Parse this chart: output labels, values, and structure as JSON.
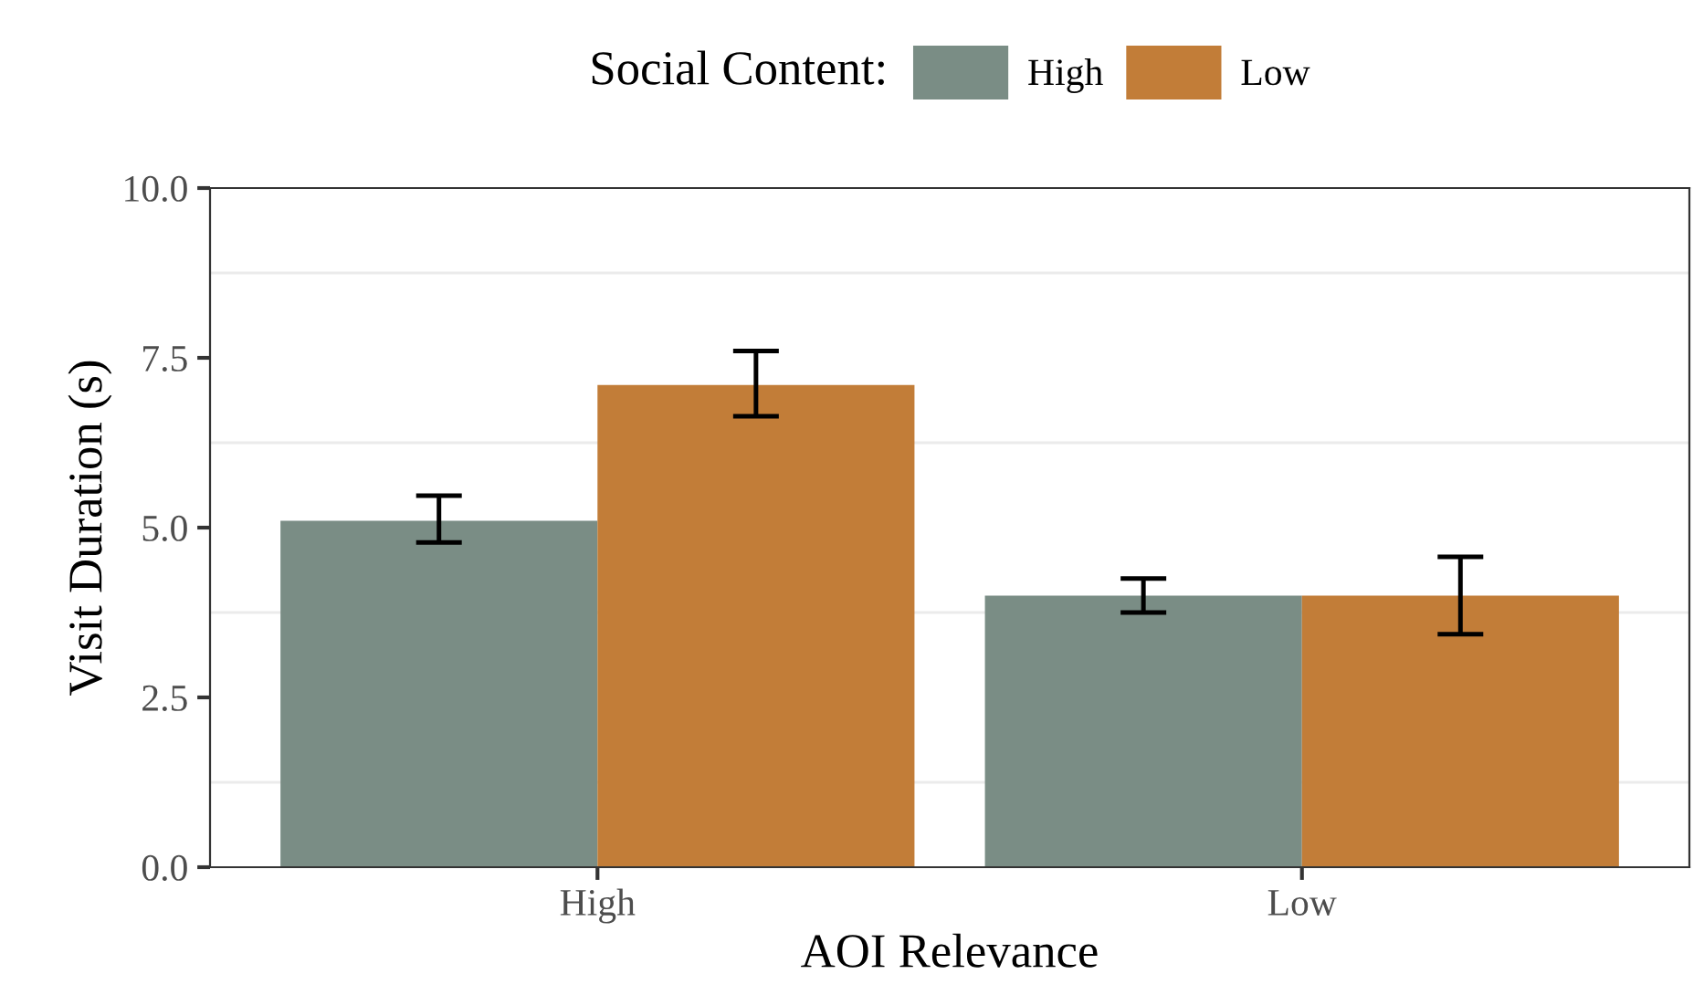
{
  "chart_data": {
    "type": "bar",
    "xlabel": "AOI Relevance",
    "ylabel": "Visit Duration (s)",
    "legend_title": "Social Content:",
    "categories": [
      "High",
      "Low"
    ],
    "series": [
      {
        "name": "High",
        "color": "#7a8d85",
        "values": [
          5.1,
          4.0
        ],
        "errors": [
          [
            4.78,
            5.47
          ],
          [
            3.75,
            4.25
          ]
        ]
      },
      {
        "name": "Low",
        "color": "#c27d38",
        "values": [
          7.1,
          4.0
        ],
        "errors": [
          [
            6.64,
            7.6
          ],
          [
            3.43,
            4.57
          ]
        ]
      }
    ],
    "ylim": [
      0,
      10
    ],
    "yticks": [
      {
        "value": 0,
        "label": "0.0"
      },
      {
        "value": 2.5,
        "label": "2.5"
      },
      {
        "value": 5,
        "label": "5.0"
      },
      {
        "value": 7.5,
        "label": "7.5"
      },
      {
        "value": 10,
        "label": "10.0"
      }
    ],
    "grid": "y",
    "legend": "top"
  }
}
